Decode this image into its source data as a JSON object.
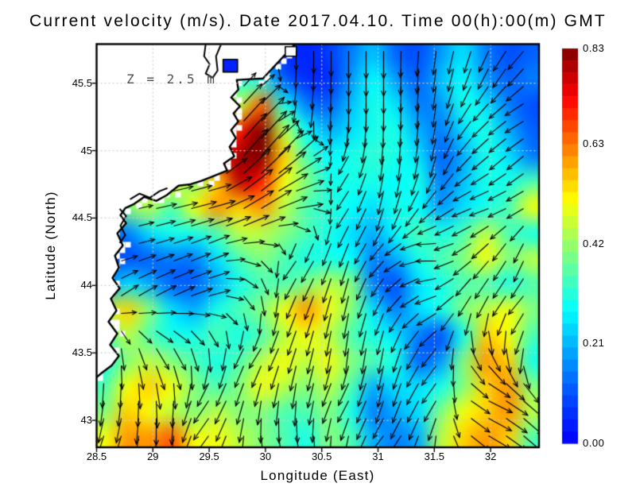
{
  "chart_data": {
    "type": "heatmap",
    "overlay": "quiver",
    "title": "Current velocity (m/s). Date 2017.04.10. Time 00(h):00(m) GMT",
    "annotation": "Z = 2.5 m",
    "xlabel": "Longitude (East)",
    "ylabel": "Latitude (North)",
    "units": "m/s",
    "xlim": [
      28.5,
      32.43
    ],
    "ylim": [
      42.8,
      45.79
    ],
    "grid": true,
    "xticks": {
      "values": [
        28.5,
        29,
        29.5,
        30,
        30.5,
        31,
        31.5,
        32
      ],
      "labels": [
        "28.5",
        "29",
        "29.5",
        "30",
        "30.5",
        "31",
        "31.5",
        "32"
      ]
    },
    "yticks": {
      "values": [
        45.5,
        45,
        44.5,
        44,
        43.5,
        43
      ],
      "labels": [
        "45.5",
        "45",
        "44.5",
        "44",
        "43.5",
        "43"
      ]
    },
    "colorbar": {
      "min": 0,
      "max": 0.83,
      "colormap": "jet",
      "tick_values": [
        0.83,
        0.63,
        0.42,
        0.21,
        0.0
      ],
      "tick_labels": [
        "0.83",
        "0.63",
        "0.42",
        "0.21",
        "0.00"
      ],
      "top_color": "#7f0000",
      "bottom_color": "#0022ff"
    },
    "land_color": "#ffffff",
    "coast_color": "#000000",
    "speed_grid": {
      "nx": 20,
      "ny": 16,
      "lon0": 28.5,
      "lon1": 32.5,
      "lat0": 45.79,
      "lat1": 42.81,
      "values": [
        [
          0.1,
          0.1,
          0.1,
          0.1,
          0.1,
          0.1,
          0.1,
          0.1,
          0.06,
          0.05,
          0.08,
          0.15,
          0.22,
          0.12,
          0.1,
          0.18,
          0.25,
          0.15,
          0.1,
          0.12
        ],
        [
          0.1,
          0.1,
          0.1,
          0.1,
          0.1,
          0.2,
          0.3,
          0.3,
          0.12,
          0.06,
          0.06,
          0.18,
          0.28,
          0.18,
          0.12,
          0.22,
          0.28,
          0.18,
          0.12,
          0.15
        ],
        [
          0.45,
          0.45,
          0.45,
          0.45,
          0.45,
          0.55,
          0.45,
          0.65,
          0.3,
          0.15,
          0.12,
          0.22,
          0.3,
          0.25,
          0.15,
          0.18,
          0.3,
          0.25,
          0.15,
          0.1
        ],
        [
          0.5,
          0.5,
          0.5,
          0.5,
          0.55,
          0.65,
          0.7,
          0.83,
          0.45,
          0.28,
          0.2,
          0.25,
          0.3,
          0.3,
          0.2,
          0.15,
          0.25,
          0.3,
          0.2,
          0.12
        ],
        [
          0.5,
          0.5,
          0.5,
          0.5,
          0.55,
          0.7,
          0.8,
          0.83,
          0.55,
          0.35,
          0.28,
          0.3,
          0.32,
          0.3,
          0.25,
          0.12,
          0.2,
          0.3,
          0.25,
          0.15
        ],
        [
          0.4,
          0.4,
          0.45,
          0.5,
          0.4,
          0.55,
          0.78,
          0.7,
          0.5,
          0.4,
          0.3,
          0.3,
          0.3,
          0.28,
          0.3,
          0.15,
          0.22,
          0.3,
          0.3,
          0.35
        ],
        [
          0.35,
          0.4,
          0.45,
          0.35,
          0.5,
          0.6,
          0.55,
          0.6,
          0.45,
          0.35,
          0.32,
          0.28,
          0.25,
          0.3,
          0.28,
          0.18,
          0.25,
          0.3,
          0.35,
          0.5
        ],
        [
          0.12,
          0.15,
          0.25,
          0.3,
          0.3,
          0.35,
          0.45,
          0.45,
          0.4,
          0.35,
          0.3,
          0.25,
          0.2,
          0.28,
          0.35,
          0.3,
          0.35,
          0.45,
          0.35,
          0.3
        ],
        [
          0.1,
          0.1,
          0.12,
          0.15,
          0.15,
          0.25,
          0.35,
          0.4,
          0.35,
          0.3,
          0.3,
          0.28,
          0.15,
          0.2,
          0.3,
          0.35,
          0.4,
          0.5,
          0.4,
          0.45
        ],
        [
          0.15,
          0.25,
          0.2,
          0.12,
          0.12,
          0.2,
          0.3,
          0.35,
          0.35,
          0.4,
          0.45,
          0.4,
          0.15,
          0.1,
          0.25,
          0.3,
          0.35,
          0.35,
          0.3,
          0.35
        ],
        [
          0.45,
          0.55,
          0.4,
          0.25,
          0.2,
          0.3,
          0.35,
          0.4,
          0.5,
          0.6,
          0.5,
          0.4,
          0.25,
          0.15,
          0.25,
          0.3,
          0.4,
          0.45,
          0.5,
          0.4
        ],
        [
          0.35,
          0.45,
          0.35,
          0.3,
          0.3,
          0.35,
          0.3,
          0.35,
          0.45,
          0.5,
          0.45,
          0.35,
          0.3,
          0.25,
          0.15,
          0.1,
          0.3,
          0.55,
          0.5,
          0.35
        ],
        [
          0.3,
          0.4,
          0.45,
          0.4,
          0.35,
          0.3,
          0.35,
          0.45,
          0.5,
          0.45,
          0.5,
          0.4,
          0.35,
          0.3,
          0.12,
          0.18,
          0.4,
          0.6,
          0.55,
          0.3
        ],
        [
          0.35,
          0.5,
          0.55,
          0.5,
          0.4,
          0.35,
          0.4,
          0.5,
          0.45,
          0.4,
          0.45,
          0.35,
          0.2,
          0.25,
          0.25,
          0.3,
          0.4,
          0.55,
          0.6,
          0.4
        ],
        [
          0.4,
          0.55,
          0.5,
          0.45,
          0.4,
          0.45,
          0.4,
          0.4,
          0.35,
          0.35,
          0.4,
          0.3,
          0.15,
          0.2,
          0.25,
          0.4,
          0.5,
          0.55,
          0.6,
          0.45
        ],
        [
          0.5,
          0.6,
          0.6,
          0.65,
          0.5,
          0.5,
          0.45,
          0.4,
          0.35,
          0.3,
          0.4,
          0.35,
          0.2,
          0.15,
          0.2,
          0.45,
          0.55,
          0.6,
          0.55,
          0.35
        ]
      ]
    },
    "flow_grid": {
      "nx": 10,
      "ny": 9,
      "lon0": 28.7,
      "dlon": 0.4,
      "lat0": 45.65,
      "dlat": 0.35,
      "uv": [
        [
          [
            0,
            0
          ],
          [
            0,
            0
          ],
          [
            0,
            0
          ],
          [
            0,
            0
          ],
          [
            0,
            -0.35
          ],
          [
            0,
            -0.55
          ],
          [
            0,
            -0.55
          ],
          [
            -0.05,
            -0.45
          ],
          [
            -0.15,
            -0.4
          ],
          [
            -0.3,
            -0.35
          ]
        ],
        [
          [
            0,
            0
          ],
          [
            0,
            0
          ],
          [
            0,
            0
          ],
          [
            0.55,
            0.6
          ],
          [
            -0.1,
            -0.4
          ],
          [
            0,
            -0.6
          ],
          [
            0,
            -0.55
          ],
          [
            -0.05,
            -0.45
          ],
          [
            -0.3,
            -0.35
          ],
          [
            -0.35,
            -0.2
          ]
        ],
        [
          [
            0,
            0
          ],
          [
            0,
            0
          ],
          [
            0.1,
            0.05
          ],
          [
            0.65,
            0.75
          ],
          [
            0.45,
            0.4
          ],
          [
            -0.2,
            -0.3
          ],
          [
            -0.05,
            -0.5
          ],
          [
            -0.1,
            -0.4
          ],
          [
            -0.3,
            -0.25
          ],
          [
            -0.3,
            -0.25
          ]
        ],
        [
          [
            0,
            0
          ],
          [
            0.45,
            0.1
          ],
          [
            0.55,
            0.15
          ],
          [
            0.7,
            0.5
          ],
          [
            0.6,
            0.1
          ],
          [
            -0.25,
            -0.35
          ],
          [
            -0.1,
            -0.45
          ],
          [
            -0.3,
            -0.3
          ],
          [
            -0.35,
            -0.1
          ],
          [
            -0.3,
            -0.15
          ]
        ],
        [
          [
            0.25,
            0.05
          ],
          [
            0.3,
            0.1
          ],
          [
            0.35,
            0.15
          ],
          [
            0.3,
            -0.1
          ],
          [
            -0.3,
            -0.35
          ],
          [
            -0.15,
            -0.5
          ],
          [
            -0.3,
            -0.25
          ],
          [
            -0.35,
            0.05
          ],
          [
            -0.35,
            -0.3
          ],
          [
            -0.15,
            -0.4
          ]
        ],
        [
          [
            0.3,
            0.2
          ],
          [
            0.4,
            0.2
          ],
          [
            0.4,
            0.1
          ],
          [
            0.1,
            -0.35
          ],
          [
            -0.2,
            -0.45
          ],
          [
            -0.1,
            -0.5
          ],
          [
            -0.2,
            -0.35
          ],
          [
            -0.4,
            -0.15
          ],
          [
            -0.2,
            -0.45
          ],
          [
            -0.3,
            -0.35
          ]
        ],
        [
          [
            0.05,
            -0.4
          ],
          [
            0.3,
            -0.4
          ],
          [
            0.05,
            -0.45
          ],
          [
            -0.25,
            -0.35
          ],
          [
            -0.15,
            -0.5
          ],
          [
            -0.05,
            -0.5
          ],
          [
            -0.1,
            -0.5
          ],
          [
            -0.3,
            -0.35
          ],
          [
            0.3,
            -0.45
          ],
          [
            -0.1,
            -0.5
          ]
        ],
        [
          [
            -0.05,
            -0.5
          ],
          [
            0.05,
            -0.55
          ],
          [
            -0.3,
            -0.45
          ],
          [
            -0.1,
            -0.45
          ],
          [
            -0.05,
            -0.5
          ],
          [
            -0.25,
            -0.4
          ],
          [
            -0.1,
            -0.45
          ],
          [
            -0.3,
            -0.4
          ],
          [
            0.5,
            -0.2
          ],
          [
            0.4,
            -0.35
          ]
        ],
        [
          [
            -0.15,
            -0.45
          ],
          [
            0,
            -0.55
          ],
          [
            -0.3,
            -0.4
          ],
          [
            0.05,
            -0.5
          ],
          [
            0.1,
            -0.45
          ],
          [
            -0.05,
            -0.45
          ],
          [
            -0.3,
            -0.3
          ],
          [
            -0.05,
            -0.45
          ],
          [
            0.45,
            -0.25
          ],
          [
            0.35,
            -0.3
          ]
        ]
      ]
    },
    "coastline": [
      [
        28.5,
        45.789
      ],
      [
        30.261,
        45.789
      ],
      [
        29.978,
        45.535
      ],
      [
        29.745,
        45.524
      ],
      [
        29.759,
        45.453
      ],
      [
        29.695,
        45.394
      ],
      [
        29.773,
        45.329
      ],
      [
        29.716,
        45.276
      ],
      [
        29.759,
        45.217
      ],
      [
        29.695,
        45.152
      ],
      [
        29.737,
        45.093
      ],
      [
        29.681,
        45.028
      ],
      [
        29.723,
        44.958
      ],
      [
        29.631,
        44.905
      ],
      [
        29.66,
        44.852
      ],
      [
        29.539,
        44.811
      ],
      [
        29.426,
        44.775
      ],
      [
        29.334,
        44.751
      ],
      [
        29.228,
        44.74
      ],
      [
        29.122,
        44.669
      ],
      [
        29.03,
        44.627
      ],
      [
        28.924,
        44.657
      ],
      [
        28.832,
        44.604
      ],
      [
        28.755,
        44.574
      ],
      [
        28.712,
        44.521
      ],
      [
        28.762,
        44.462
      ],
      [
        28.684,
        44.386
      ],
      [
        28.733,
        44.297
      ],
      [
        28.663,
        44.221
      ],
      [
        28.698,
        44.132
      ],
      [
        28.641,
        44.056
      ],
      [
        28.705,
        43.979
      ],
      [
        28.627,
        43.902
      ],
      [
        28.677,
        43.814
      ],
      [
        28.606,
        43.731
      ],
      [
        28.684,
        43.643
      ],
      [
        28.62,
        43.56
      ],
      [
        28.698,
        43.478
      ],
      [
        28.634,
        43.407
      ],
      [
        28.549,
        43.354
      ],
      [
        28.5,
        43.319
      ]
    ],
    "lagoon": {
      "lon0": 29.624,
      "lat0": 45.583,
      "lon1": 29.752,
      "lat1": 45.677
    },
    "island": {
      "lon0": 30.176,
      "lat0": 45.7,
      "lon1": 30.275,
      "lat1": 45.771
    },
    "inner_lines": [
      [
        [
          29.469,
          45.789
        ],
        [
          29.455,
          45.7
        ],
        [
          29.504,
          45.641
        ],
        [
          29.469,
          45.571
        ],
        [
          29.532,
          45.541
        ],
        [
          29.575,
          45.594
        ],
        [
          29.561,
          45.7
        ],
        [
          29.603,
          45.783
        ]
      ],
      [
        [
          28.705,
          44.568
        ],
        [
          28.762,
          44.515
        ],
        [
          28.712,
          44.444
        ],
        [
          28.755,
          44.374
        ],
        [
          28.705,
          44.315
        ]
      ],
      [
        [
          28.797,
          44.639
        ],
        [
          28.882,
          44.681
        ],
        [
          28.974,
          44.651
        ],
        [
          29.059,
          44.699
        ],
        [
          29.129,
          44.722
        ]
      ]
    ]
  }
}
